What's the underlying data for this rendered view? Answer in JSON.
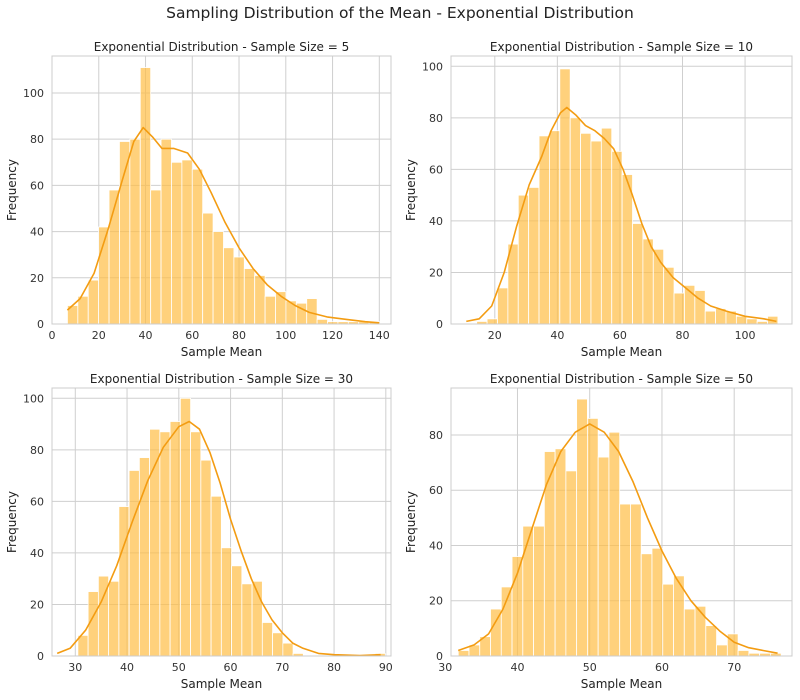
{
  "suptitle": "Sampling Distribution of the Mean - Exponential Distribution",
  "colors": {
    "bar": "#ffbe45",
    "bar_opacity": "0.7",
    "kde": "#f39c12",
    "grid": "#cfcfcf",
    "axes_edge": "#cccccc"
  },
  "chart_data": [
    {
      "type": "bar",
      "title": "Exponential Distribution - Sample Size = 5",
      "xlabel": "Sample Mean",
      "ylabel": "Frequency",
      "xlim": [
        0,
        145
      ],
      "ylim": [
        0,
        116
      ],
      "grid": true,
      "xticks": [
        0,
        20,
        40,
        60,
        80,
        100,
        120,
        140
      ],
      "yticks": [
        0,
        20,
        40,
        60,
        80,
        100
      ],
      "bin_start": 6.6,
      "bin_width": 4.45,
      "values": [
        8,
        12,
        19,
        42,
        58,
        79,
        80,
        111,
        58,
        80,
        70,
        71,
        67,
        48,
        40,
        33,
        29,
        24,
        21,
        12,
        14,
        10,
        9,
        11,
        2,
        1,
        1,
        1,
        1,
        1
      ],
      "kde": [
        [
          6.6,
          6
        ],
        [
          12,
          11
        ],
        [
          18,
          22
        ],
        [
          24,
          41
        ],
        [
          30,
          62
        ],
        [
          35,
          79
        ],
        [
          39,
          85
        ],
        [
          43,
          81
        ],
        [
          47,
          76
        ],
        [
          52,
          76
        ],
        [
          58,
          74
        ],
        [
          63,
          67
        ],
        [
          68,
          57
        ],
        [
          74,
          44
        ],
        [
          80,
          33
        ],
        [
          86,
          24
        ],
        [
          92,
          17
        ],
        [
          98,
          12
        ],
        [
          104,
          8
        ],
        [
          110,
          5
        ],
        [
          118,
          3
        ],
        [
          126,
          2
        ],
        [
          134,
          1
        ],
        [
          140,
          0.5
        ]
      ]
    },
    {
      "type": "bar",
      "title": "Exponential Distribution - Sample Size = 10",
      "xlabel": "Sample Mean",
      "ylabel": "Frequency",
      "xlim": [
        6,
        115
      ],
      "ylim": [
        0,
        104
      ],
      "grid": true,
      "xticks": [
        20,
        40,
        60,
        80,
        100
      ],
      "yticks": [
        0,
        20,
        40,
        60,
        80,
        100
      ],
      "bin_start": 10.9,
      "bin_width": 3.32,
      "values": [
        0,
        1,
        2,
        14,
        31,
        50,
        53,
        73,
        75,
        99,
        80,
        74,
        71,
        76,
        67,
        58,
        39,
        33,
        29,
        22,
        12,
        15,
        13,
        5,
        6,
        5,
        3,
        2,
        1,
        3
      ],
      "kde": [
        [
          10.9,
          1
        ],
        [
          15,
          2
        ],
        [
          19,
          7
        ],
        [
          23,
          20
        ],
        [
          27,
          38
        ],
        [
          31,
          54
        ],
        [
          35,
          65
        ],
        [
          38,
          75
        ],
        [
          41,
          82
        ],
        [
          43,
          84
        ],
        [
          46,
          81
        ],
        [
          49,
          77
        ],
        [
          52,
          75
        ],
        [
          55,
          72
        ],
        [
          58,
          68
        ],
        [
          61,
          60
        ],
        [
          64,
          50
        ],
        [
          67,
          39
        ],
        [
          70,
          30
        ],
        [
          73,
          24
        ],
        [
          77,
          18
        ],
        [
          81,
          14
        ],
        [
          85,
          10
        ],
        [
          89,
          7
        ],
        [
          94,
          5
        ],
        [
          100,
          3
        ],
        [
          106,
          2
        ],
        [
          110,
          1
        ]
      ]
    },
    {
      "type": "bar",
      "title": "Exponential Distribution - Sample Size = 30",
      "xlabel": "Sample Mean",
      "ylabel": "Frequency",
      "xlim": [
        25.5,
        91
      ],
      "ylim": [
        0,
        104
      ],
      "grid": true,
      "xticks": [
        30,
        40,
        50,
        60,
        70,
        80,
        90
      ],
      "yticks": [
        0,
        20,
        40,
        60,
        80,
        100
      ],
      "bin_start": 30.5,
      "bin_width": 1.98,
      "values": [
        8,
        25,
        31,
        29,
        58,
        72,
        77,
        88,
        87,
        91,
        100,
        87,
        76,
        62,
        42,
        35,
        28,
        29,
        13,
        9,
        5,
        1,
        0,
        0,
        0,
        0,
        0,
        0,
        0,
        1
      ],
      "kde": [
        [
          26.5,
          1
        ],
        [
          29,
          3
        ],
        [
          32,
          10
        ],
        [
          35,
          21
        ],
        [
          38,
          35
        ],
        [
          41,
          52
        ],
        [
          44,
          68
        ],
        [
          47,
          81
        ],
        [
          50,
          89
        ],
        [
          52,
          91
        ],
        [
          54,
          88
        ],
        [
          56,
          79
        ],
        [
          58,
          67
        ],
        [
          60,
          53
        ],
        [
          62,
          41
        ],
        [
          64,
          30
        ],
        [
          66,
          21
        ],
        [
          68,
          14
        ],
        [
          70,
          9
        ],
        [
          72,
          5
        ],
        [
          74,
          3
        ],
        [
          77,
          1
        ],
        [
          80,
          0.5
        ],
        [
          85,
          0.2
        ],
        [
          89,
          0.5
        ]
      ]
    },
    {
      "type": "bar",
      "title": "Exponential Distribution - Sample Size = 50",
      "xlabel": "Sample Mean",
      "ylabel": "Frequency",
      "xlim": [
        30.8,
        78
      ],
      "ylim": [
        0,
        97
      ],
      "grid": true,
      "xticks": [
        30,
        40,
        50,
        60,
        70
      ],
      "yticks": [
        0,
        20,
        40,
        60,
        80
      ],
      "bin_start": 31.8,
      "bin_width": 1.49,
      "values": [
        2,
        4,
        7,
        17,
        25,
        36,
        47,
        47,
        74,
        75,
        67,
        93,
        86,
        72,
        81,
        55,
        55,
        37,
        39,
        26,
        29,
        17,
        18,
        11,
        4,
        8,
        2,
        1,
        1,
        1
      ],
      "kde": [
        [
          31.8,
          2
        ],
        [
          34,
          4
        ],
        [
          36,
          8
        ],
        [
          38,
          17
        ],
        [
          40,
          30
        ],
        [
          42,
          46
        ],
        [
          44,
          62
        ],
        [
          46,
          74
        ],
        [
          48,
          81
        ],
        [
          50,
          84
        ],
        [
          52,
          81
        ],
        [
          54,
          74
        ],
        [
          56,
          63
        ],
        [
          58,
          50
        ],
        [
          60,
          38
        ],
        [
          62,
          28
        ],
        [
          64,
          20
        ],
        [
          66,
          14
        ],
        [
          68,
          9
        ],
        [
          70,
          5
        ],
        [
          72,
          3
        ],
        [
          74,
          2
        ],
        [
          76,
          1
        ]
      ]
    }
  ]
}
